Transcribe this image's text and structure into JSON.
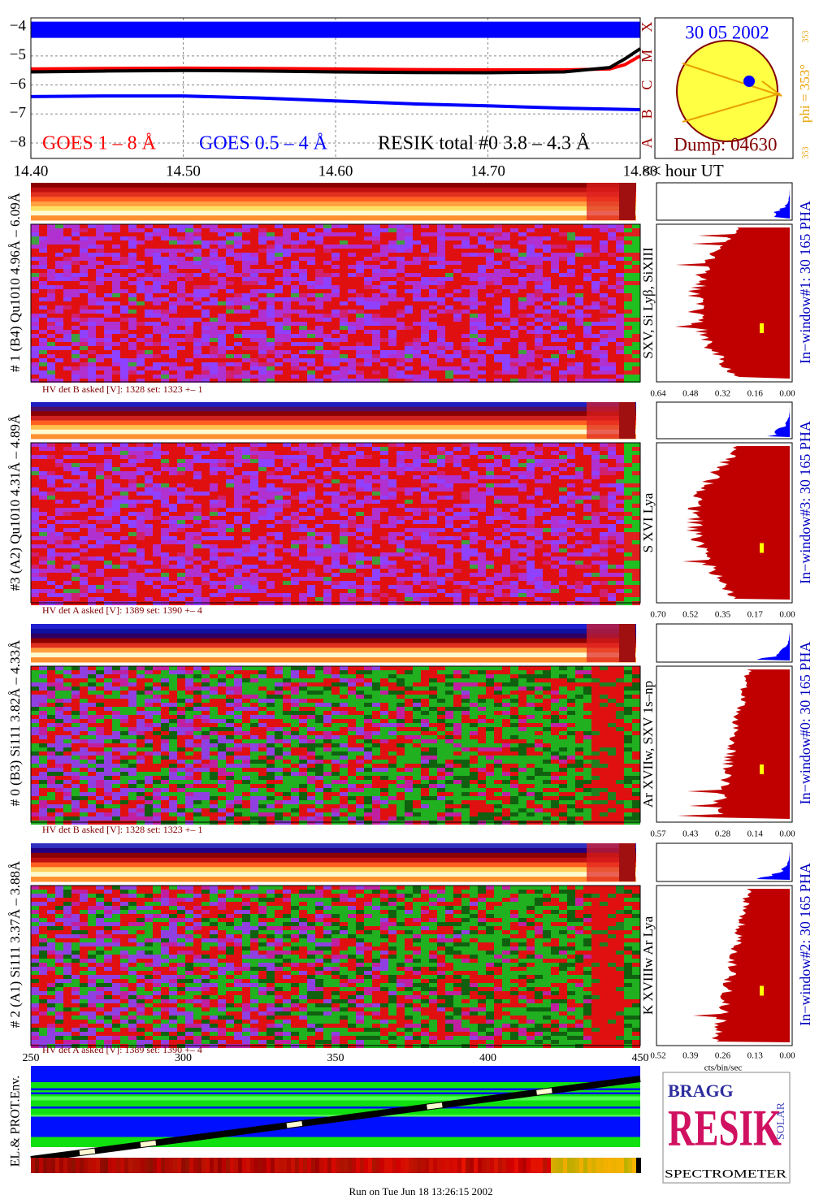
{
  "chart_data": {
    "type": "line",
    "x": [
      14.4,
      14.45,
      14.5,
      14.55,
      14.6,
      14.65,
      14.7,
      14.75,
      14.78,
      14.79,
      14.8
    ],
    "series": [
      {
        "name": "GOES 1 – 8 Å",
        "color": "#ff0000",
        "values": [
          -5.45,
          -5.43,
          -5.42,
          -5.43,
          -5.45,
          -5.47,
          -5.48,
          -5.48,
          -5.45,
          -5.3,
          -5.0
        ]
      },
      {
        "name": "GOES 0.5 – 4 Å",
        "color": "#0000ff",
        "values": [
          -6.4,
          -6.38,
          -6.38,
          -6.45,
          -6.55,
          -6.65,
          -6.72,
          -6.8,
          -6.83,
          -6.84,
          -6.85
        ]
      },
      {
        "name": "RESIK total #0  3.8 – 4.3 Å",
        "color": "#000000",
        "values": [
          -5.55,
          -5.52,
          -5.5,
          -5.52,
          -5.55,
          -5.57,
          -5.58,
          -5.55,
          -5.4,
          -5.1,
          -4.75
        ]
      },
      {
        "color": "#0000ff",
        "values": [
          -4.1,
          -4.1,
          -4.1,
          -4.1,
          -4.1,
          -4.1,
          -4.1,
          -4.1,
          -4.1,
          -4.1,
          -4.1
        ]
      }
    ],
    "xlim": [
      14.4,
      14.8
    ],
    "xticks": [
      {
        "value": 14.4,
        "label": "14.40"
      },
      {
        "value": 14.5,
        "label": "14.50"
      },
      {
        "value": 14.6,
        "label": "14.60"
      },
      {
        "value": 14.7,
        "label": "14.70"
      },
      {
        "value": 14.8,
        "label": "14.80"
      }
    ],
    "xlabel": "<< hour UT",
    "ylim": [
      -8.53,
      -3.69
    ],
    "yticks": [
      {
        "value": -4,
        "label": "−4"
      },
      {
        "value": -5,
        "label": "−5"
      },
      {
        "value": -6,
        "label": "−6"
      },
      {
        "value": -7,
        "label": "−7"
      },
      {
        "value": -8,
        "label": "−8"
      }
    ],
    "flare_classes": [
      "X",
      "M",
      "C",
      "B",
      "A"
    ],
    "grid": true
  },
  "sun": {
    "date": "30 05 2002",
    "dump": "Dump: 04630",
    "phi": "phi = 353°",
    "phi_small": "353",
    "phi_small2": "353"
  },
  "panels": [
    {
      "label": "# 1 (B4) Qu1010 4.96Å – 6.09Å",
      "lines": "SXV, Si Lyβ, SiXIII",
      "hv": "HV det B asked [V]:  1328  set:  1323  +–   1",
      "window": "In−window#1:   30 165  PHA",
      "ticks": [
        "0.64",
        "0.48",
        "0.32",
        "0.16",
        "0.00"
      ]
    },
    {
      "label": "#3 (A2) Qu1010  4.31Å – 4.89Å",
      "lines": "S XVI Lya",
      "hv": "HV det A asked [V]:  1389  set:  1390  +–    4",
      "window": "In−window#3:   30 165  PHA",
      "ticks": [
        "0.70",
        "0.52",
        "0.35",
        "0.17",
        "0.00"
      ]
    },
    {
      "label": "# 0 (B3) Si111  3.82Å – 4.33Å",
      "lines": "Ar XVIIw,  SXV 1s–np",
      "hv": "HV det B asked [V]:  1328  set:  1323  +–   1",
      "window": "In−window#0:   30 165  PHA",
      "ticks": [
        "0.57",
        "0.43",
        "0.28",
        "0.14",
        "0.00"
      ]
    },
    {
      "label": "# 2 (A1) Si111  3.37Å – 3.88Å",
      "lines": "K XVIIIw  Ar Lya",
      "hv": "HV det A asked [V]:  1389  set:  1390  +–    4",
      "window": "In−window#2:   30 165  PHA",
      "ticks": [
        "0.52",
        "0.39",
        "0.26",
        "0.13",
        "0.00"
      ]
    }
  ],
  "bin_axis": [
    "250",
    "300",
    "350",
    "400",
    "450"
  ],
  "hist_unit": "cts/bin/sec",
  "env_label": "EL.& PROT.Env.",
  "logo": {
    "top": "BRAGG",
    "main": "RESIK",
    "side": "SOLAR",
    "bottom": "SPECTROMETER"
  },
  "footer": "Run on Tue Jun 18 13:26:15 2002"
}
